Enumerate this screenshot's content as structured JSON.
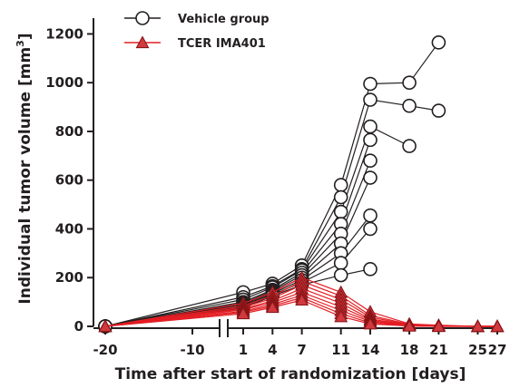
{
  "chart_data": {
    "type": "line",
    "xlabel": "Time after start of randomization [days]",
    "ylabel_parts": [
      "Individual tumor volume [mm",
      "3",
      "]"
    ],
    "x_ticks": [
      -20,
      -10,
      1,
      4,
      7,
      11,
      14,
      18,
      21,
      25,
      27
    ],
    "x_tick_labels": [
      "-20",
      "-10",
      "1",
      "4",
      "7",
      "11",
      "14",
      "18",
      "21",
      "25",
      "27"
    ],
    "xlim": [
      -20,
      27
    ],
    "axis_break_between": [
      -10,
      1
    ],
    "y_ticks": [
      0,
      200,
      400,
      600,
      800,
      1000,
      1200
    ],
    "ylim": [
      0,
      1250
    ],
    "grid": false,
    "legend_position": "top-left",
    "series": [
      {
        "name": "Vehicle group",
        "color": "#231f20",
        "marker": "circle",
        "marker_fill": "#ffffff",
        "animals": [
          [
            [
              -20,
              0
            ],
            [
              1,
              140
            ],
            [
              4,
              175
            ],
            [
              7,
              250
            ],
            [
              11,
              580
            ],
            [
              14,
              995
            ],
            [
              18,
              1000
            ],
            [
              21,
              1165
            ]
          ],
          [
            [
              -20,
              0
            ],
            [
              1,
              120
            ],
            [
              4,
              165
            ],
            [
              7,
              235
            ],
            [
              11,
              530
            ],
            [
              14,
              930
            ],
            [
              18,
              905
            ],
            [
              21,
              885
            ]
          ],
          [
            [
              -20,
              0
            ],
            [
              1,
              110
            ],
            [
              4,
              160
            ],
            [
              7,
              230
            ],
            [
              11,
              470
            ],
            [
              14,
              820
            ],
            [
              18,
              740
            ]
          ],
          [
            [
              -20,
              0
            ],
            [
              1,
              100
            ],
            [
              4,
              150
            ],
            [
              7,
              220
            ],
            [
              11,
              420
            ],
            [
              14,
              765
            ]
          ],
          [
            [
              -20,
              0
            ],
            [
              1,
              95
            ],
            [
              4,
              145
            ],
            [
              7,
              210
            ],
            [
              11,
              380
            ],
            [
              14,
              680
            ]
          ],
          [
            [
              -20,
              0
            ],
            [
              1,
              90
            ],
            [
              4,
              140
            ],
            [
              7,
              200
            ],
            [
              11,
              340
            ],
            [
              14,
              610
            ]
          ],
          [
            [
              -20,
              0
            ],
            [
              1,
              85
            ],
            [
              4,
              135
            ],
            [
              7,
              190
            ],
            [
              11,
              300
            ],
            [
              14,
              455
            ]
          ],
          [
            [
              -20,
              0
            ],
            [
              1,
              80
            ],
            [
              4,
              130
            ],
            [
              7,
              180
            ],
            [
              11,
              260
            ],
            [
              14,
              400
            ]
          ],
          [
            [
              -20,
              0
            ],
            [
              1,
              75
            ],
            [
              4,
              125
            ],
            [
              7,
              170
            ],
            [
              11,
              210
            ],
            [
              14,
              235
            ]
          ]
        ]
      },
      {
        "name": "TCER IMA401",
        "color": "#e31e24",
        "marker": "triangle",
        "marker_fill": "#d0393e",
        "animals": [
          [
            [
              -20,
              0
            ],
            [
              1,
              95
            ],
            [
              4,
              140
            ],
            [
              7,
              200
            ],
            [
              11,
              140
            ],
            [
              14,
              60
            ],
            [
              18,
              10
            ],
            [
              21,
              5
            ],
            [
              25,
              0
            ],
            [
              27,
              0
            ]
          ],
          [
            [
              -20,
              0
            ],
            [
              1,
              85
            ],
            [
              4,
              125
            ],
            [
              7,
              185
            ],
            [
              11,
              125
            ],
            [
              14,
              45
            ],
            [
              18,
              8
            ],
            [
              21,
              3
            ],
            [
              25,
              0
            ],
            [
              27,
              0
            ]
          ],
          [
            [
              -20,
              0
            ],
            [
              1,
              78
            ],
            [
              4,
              115
            ],
            [
              7,
              170
            ],
            [
              11,
              110
            ],
            [
              14,
              38
            ],
            [
              18,
              6
            ],
            [
              21,
              2
            ],
            [
              25,
              0
            ],
            [
              27,
              0
            ]
          ],
          [
            [
              -20,
              0
            ],
            [
              1,
              72
            ],
            [
              4,
              105
            ],
            [
              7,
              155
            ],
            [
              11,
              95
            ],
            [
              14,
              30
            ],
            [
              18,
              5
            ],
            [
              21,
              2
            ],
            [
              25,
              0
            ],
            [
              27,
              0
            ]
          ],
          [
            [
              -20,
              0
            ],
            [
              1,
              68
            ],
            [
              4,
              98
            ],
            [
              7,
              140
            ],
            [
              11,
              80
            ],
            [
              14,
              25
            ],
            [
              18,
              4
            ],
            [
              21,
              1
            ],
            [
              25,
              0
            ],
            [
              27,
              0
            ]
          ],
          [
            [
              -20,
              0
            ],
            [
              1,
              62
            ],
            [
              4,
              90
            ],
            [
              7,
              128
            ],
            [
              11,
              65
            ],
            [
              14,
              20
            ],
            [
              18,
              3
            ],
            [
              21,
              1
            ],
            [
              25,
              0
            ],
            [
              27,
              0
            ]
          ],
          [
            [
              -20,
              0
            ],
            [
              1,
              58
            ],
            [
              4,
              84
            ],
            [
              7,
              118
            ],
            [
              11,
              52
            ],
            [
              14,
              14
            ],
            [
              18,
              2
            ],
            [
              21,
              0
            ],
            [
              25,
              0
            ],
            [
              27,
              0
            ]
          ],
          [
            [
              -20,
              0
            ],
            [
              1,
              52
            ],
            [
              4,
              78
            ],
            [
              7,
              108
            ],
            [
              11,
              40
            ],
            [
              14,
              10
            ],
            [
              18,
              1
            ],
            [
              21,
              0
            ],
            [
              25,
              0
            ],
            [
              27,
              0
            ]
          ]
        ]
      }
    ]
  }
}
